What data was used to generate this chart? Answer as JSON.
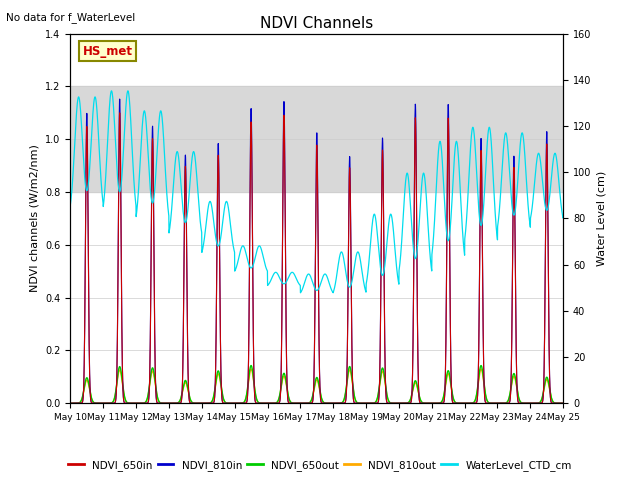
{
  "title": "NDVI Channels",
  "ylabel_left": "NDVI channels (W/m2/nm)",
  "ylabel_right": "Water Level (cm)",
  "annotation_text": "No data for f_WaterLevel",
  "station_label": "HS_met",
  "ylim_left": [
    0.0,
    1.4
  ],
  "ylim_right": [
    0,
    160
  ],
  "shaded_region": [
    0.8,
    1.2
  ],
  "colors": {
    "NDVI_650in": "#cc0000",
    "NDVI_810in": "#0000cc",
    "NDVI_650out": "#00cc00",
    "NDVI_810out": "#ffaa00",
    "WaterLevel_CTD_cm": "#00ddee"
  },
  "background_color": "#ffffff",
  "shaded_color": "#d8d8d8"
}
